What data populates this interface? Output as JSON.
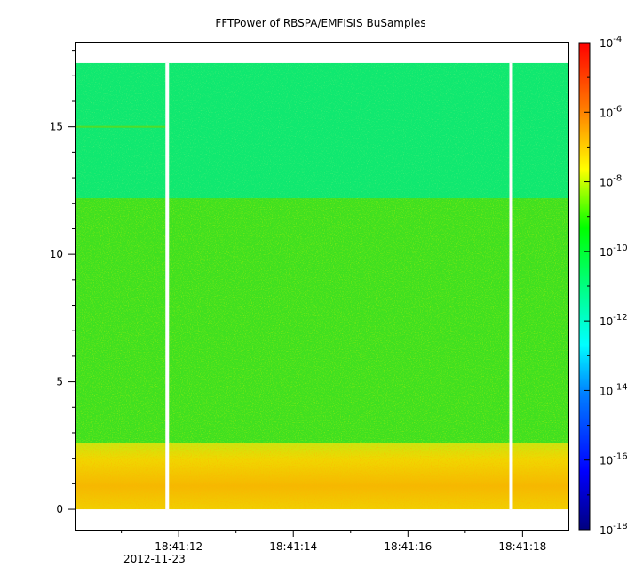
{
  "chart_data": {
    "type": "heatmap",
    "title": "FFTPower of RBSPA/EMFISIS  BuSamples",
    "xlabel": "",
    "ylabel": "",
    "date_label": "2012-11-23",
    "xlim": [
      "18:41:10.2",
      "18:41:18.8"
    ],
    "ylim": [
      -0.8,
      18.3
    ],
    "x_ticks": [
      "18:41:12",
      "18:41:14",
      "18:41:16",
      "18:41:18"
    ],
    "y_ticks": [
      0,
      5,
      10,
      15
    ],
    "data_ylim": [
      0,
      17.5
    ],
    "data_gaps_x": [
      "18:41:11.8",
      "18:41:17.8"
    ],
    "colorbar": {
      "scale": "log",
      "range": [
        1e-18,
        0.0001
      ],
      "tick_labels": [
        "-4",
        "-6",
        "-8",
        "-10",
        "-12",
        "-14",
        "-16",
        "-18"
      ],
      "tick_exponents": [
        -4,
        -6,
        -8,
        -10,
        -12,
        -14,
        -16,
        -18
      ]
    },
    "bands": [
      {
        "y_range": [
          0,
          2.6
        ],
        "level": "1e-8 to 1e-9",
        "color": "#f0c000"
      },
      {
        "y_range": [
          2.6,
          12.2
        ],
        "level": "1e-10",
        "color": "#40e020"
      },
      {
        "y_range": [
          12.2,
          17.5
        ],
        "level": "1e-11",
        "color": "#10e870"
      }
    ],
    "grid": false
  },
  "colors": {
    "background": "#ffffff",
    "band_low": "#f0c000",
    "band_mid": "#40e020",
    "band_high": "#10e870",
    "axis": "#000000"
  }
}
